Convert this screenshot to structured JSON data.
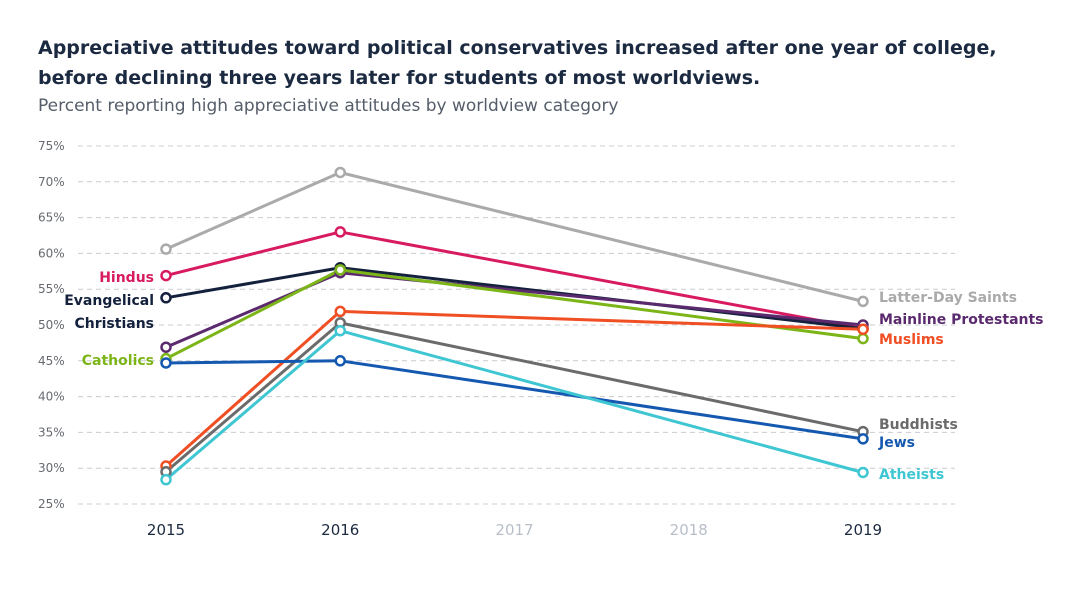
{
  "header": {
    "title": "Appreciative attitudes toward political conservatives increased after one year of college, before declining three years later for students of most worldviews.",
    "subtitle": "Percent reporting high appreciative attitudes by worldview category"
  },
  "chart_data": {
    "type": "line",
    "title": "Appreciative attitudes toward political conservatives increased after one year of college, before declining three years later for students of most worldviews.",
    "subtitle": "Percent reporting high appreciative attitudes by worldview category",
    "x": [
      2015,
      2016,
      2017,
      2018,
      2019
    ],
    "x_tick_labels": [
      "2015",
      "2016",
      "2017",
      "2018",
      "2019"
    ],
    "x_tick_colors": [
      "#1b2a41",
      "#1b2a41",
      "#b8bfc9",
      "#b8bfc9",
      "#1b2a41"
    ],
    "ylim": [
      25,
      75
    ],
    "y_ticks": [
      25,
      30,
      35,
      40,
      45,
      50,
      55,
      60,
      65,
      70,
      75
    ],
    "y_tick_labels": [
      "25%",
      "30%",
      "35%",
      "40%",
      "45%",
      "50%",
      "55%",
      "60%",
      "65%",
      "70%",
      "75%"
    ],
    "grid": true,
    "series": [
      {
        "name": "Latter-Day Saints",
        "label_lines": [
          "Latter-Day Saints"
        ],
        "label_side": "right",
        "color": "#aaaaaa",
        "x": [
          2015,
          2016,
          2019
        ],
        "values": [
          60.6,
          71.3,
          53.3
        ]
      },
      {
        "name": "Hindus",
        "label_lines": [
          "Hindus"
        ],
        "label_side": "left",
        "color": "#d81b60",
        "x": [
          2015,
          2016,
          2019
        ],
        "values": [
          56.9,
          63.0,
          49.5
        ]
      },
      {
        "name": "Evangelical Christians",
        "label_lines": [
          "Evangelical",
          "Christians"
        ],
        "label_side": "left",
        "color": "#14213d",
        "x": [
          2015,
          2016,
          2019
        ],
        "values": [
          53.8,
          58.0,
          49.5
        ]
      },
      {
        "name": "Mainline Protestants",
        "label_lines": [
          "Mainline Protestants"
        ],
        "label_side": "right",
        "color": "#5b2a6e",
        "x": [
          2015,
          2016,
          2019
        ],
        "values": [
          46.9,
          57.3,
          50.0
        ]
      },
      {
        "name": "Catholics",
        "label_lines": [
          "Catholics"
        ],
        "label_side": "left",
        "color": "#7cb518",
        "x": [
          2015,
          2016,
          2019
        ],
        "values": [
          45.3,
          57.7,
          48.1
        ]
      },
      {
        "name": "Muslims",
        "label_lines": [
          "Muslims"
        ],
        "label_side": "right",
        "color": "#f04e23",
        "x": [
          2015,
          2016,
          2019
        ],
        "values": [
          30.3,
          51.9,
          49.4
        ]
      },
      {
        "name": "Buddhists",
        "label_lines": [
          "Buddhists"
        ],
        "label_side": "right",
        "color": "#6b6b6b",
        "x": [
          2015,
          2016,
          2019
        ],
        "values": [
          29.5,
          50.3,
          35.1
        ]
      },
      {
        "name": "Jews",
        "label_lines": [
          "Jews"
        ],
        "label_side": "right",
        "color": "#1558b0",
        "x": [
          2015,
          2016,
          2019
        ],
        "values": [
          44.7,
          45.0,
          34.1
        ]
      },
      {
        "name": "Atheists",
        "label_lines": [
          "Atheists"
        ],
        "label_side": "right",
        "color": "#3ec6d2",
        "x": [
          2015,
          2016,
          2019
        ],
        "values": [
          28.4,
          49.2,
          29.4
        ]
      }
    ]
  }
}
